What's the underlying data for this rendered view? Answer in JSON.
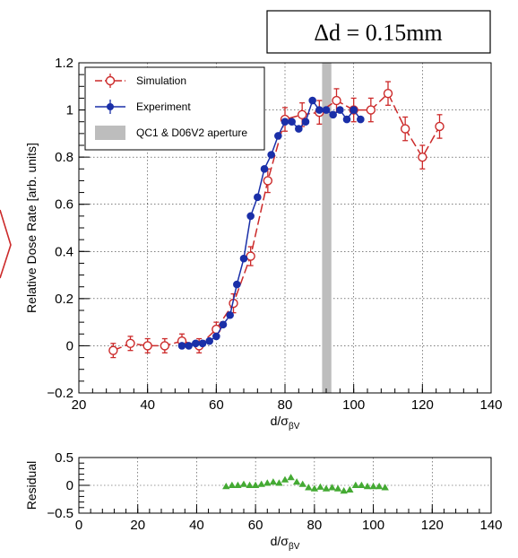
{
  "annotation": {
    "text": "Δd = 0.15mm"
  },
  "colors": {
    "simulation": "#cc2a2a",
    "experiment": "#1a2fa8",
    "residual": "#44aa33",
    "band": "#bdbdbd",
    "arrow": "#cc2a2a"
  },
  "chart_data": [
    {
      "type": "scatter",
      "title": "",
      "xlabel": "d/σ",
      "xlabel_sub": "βV",
      "ylabel": "Relative Dose Rate [arb. units]",
      "xlim": [
        20,
        140
      ],
      "ylim": [
        -0.2,
        1.2
      ],
      "xticks": [
        "20",
        "40",
        "60",
        "80",
        "100",
        "120",
        "140"
      ],
      "yticks": [
        "−0.2",
        "0",
        "0.2",
        "0.4",
        "0.6",
        "0.8",
        "1",
        "1.2"
      ],
      "grid": true,
      "legend_position": "top-left",
      "band": {
        "name": "QC1 & D06V2 aperture",
        "x": [
          90.8,
          93.5
        ]
      },
      "series": [
        {
          "name": "Simulation",
          "marker": "open-circle",
          "line": "dashed",
          "x": [
            30,
            35,
            40,
            45,
            50,
            55,
            60,
            65,
            70,
            75,
            80,
            85,
            90,
            95,
            100,
            105,
            110,
            115,
            120,
            125
          ],
          "y": [
            -0.02,
            0.01,
            0.0,
            0.0,
            0.02,
            0.0,
            0.07,
            0.18,
            0.38,
            0.7,
            0.96,
            0.98,
            0.99,
            1.04,
            1.0,
            1.0,
            1.07,
            0.92,
            0.8,
            0.93
          ],
          "err": [
            0.03,
            0.03,
            0.03,
            0.03,
            0.03,
            0.03,
            0.03,
            0.04,
            0.04,
            0.05,
            0.05,
            0.05,
            0.05,
            0.05,
            0.05,
            0.05,
            0.05,
            0.05,
            0.05,
            0.05
          ]
        },
        {
          "name": "Experiment",
          "marker": "filled-circle",
          "line": "solid",
          "x": [
            50,
            52,
            54,
            56,
            58,
            60,
            62,
            64,
            66,
            68,
            70,
            72,
            74,
            76,
            78,
            80,
            82,
            84,
            86,
            88,
            90,
            92,
            94,
            96,
            98,
            100,
            102
          ],
          "y": [
            0.0,
            0.0,
            0.01,
            0.01,
            0.02,
            0.04,
            0.09,
            0.13,
            0.26,
            0.37,
            0.55,
            0.63,
            0.75,
            0.81,
            0.89,
            0.95,
            0.95,
            0.92,
            0.95,
            1.04,
            1.0,
            1.0,
            0.98,
            1.0,
            0.96,
            1.0,
            0.96
          ],
          "err": [
            0.01,
            0.01,
            0.01,
            0.01,
            0.01,
            0.01,
            0.01,
            0.01,
            0.01,
            0.01,
            0.01,
            0.01,
            0.01,
            0.01,
            0.01,
            0.01,
            0.01,
            0.01,
            0.01,
            0.01,
            0.01,
            0.01,
            0.01,
            0.01,
            0.01,
            0.01,
            0.01
          ]
        }
      ]
    },
    {
      "type": "scatter",
      "title": "",
      "xlabel": "d/σ",
      "xlabel_sub": "βV",
      "ylabel": "Residual",
      "xlim": [
        0,
        140
      ],
      "ylim": [
        -0.5,
        0.5
      ],
      "xticks": [
        "0",
        "20",
        "40",
        "60",
        "80",
        "100",
        "120",
        "140"
      ],
      "yticks": [
        "−0.5",
        "0",
        "0.5"
      ],
      "grid": true,
      "series": [
        {
          "name": "",
          "marker": "filled-triangle",
          "x": [
            50,
            52,
            54,
            56,
            58,
            60,
            62,
            64,
            66,
            68,
            70,
            72,
            74,
            76,
            78,
            80,
            82,
            84,
            86,
            88,
            90,
            92,
            94,
            96,
            98,
            100,
            102,
            104
          ],
          "y": [
            -0.02,
            0.0,
            0.0,
            0.02,
            0.0,
            0.0,
            0.02,
            0.04,
            0.06,
            0.04,
            0.1,
            0.14,
            0.06,
            0.02,
            -0.04,
            -0.06,
            -0.03,
            -0.06,
            -0.04,
            -0.06,
            -0.1,
            -0.08,
            0.0,
            0.0,
            -0.02,
            -0.02,
            -0.02,
            -0.04
          ]
        }
      ]
    }
  ]
}
